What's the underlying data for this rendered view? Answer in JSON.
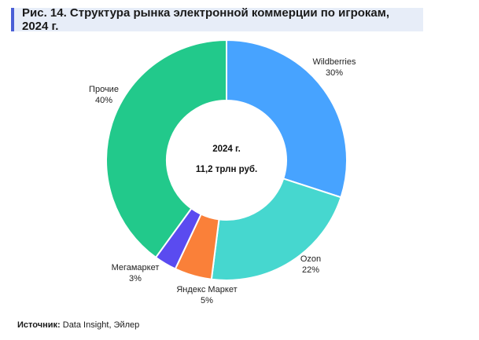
{
  "header": {
    "title": "Рис. 14. Структура рынка электронной коммерции по игрокам, 2024 г."
  },
  "chart_data": {
    "type": "pie",
    "donut": true,
    "center_lines": [
      "2024 г.",
      "11,2 трлн руб."
    ],
    "slices": [
      {
        "name": "Wildberries",
        "value": 30,
        "label": "30%",
        "color": "#47a3ff"
      },
      {
        "name": "Ozon",
        "value": 22,
        "label": "22%",
        "color": "#46d7cf"
      },
      {
        "name": "Яндекс Маркет",
        "value": 5,
        "label": "5%",
        "color": "#fa8039"
      },
      {
        "name": "Мегамаркет",
        "value": 3,
        "label": "3%",
        "color": "#5a4bf0"
      },
      {
        "name": "Прочие",
        "value": 40,
        "label": "40%",
        "color": "#22c98b"
      }
    ]
  },
  "footer": {
    "source_label": "Источник:",
    "source_text": " Data Insight, Эйлер"
  }
}
